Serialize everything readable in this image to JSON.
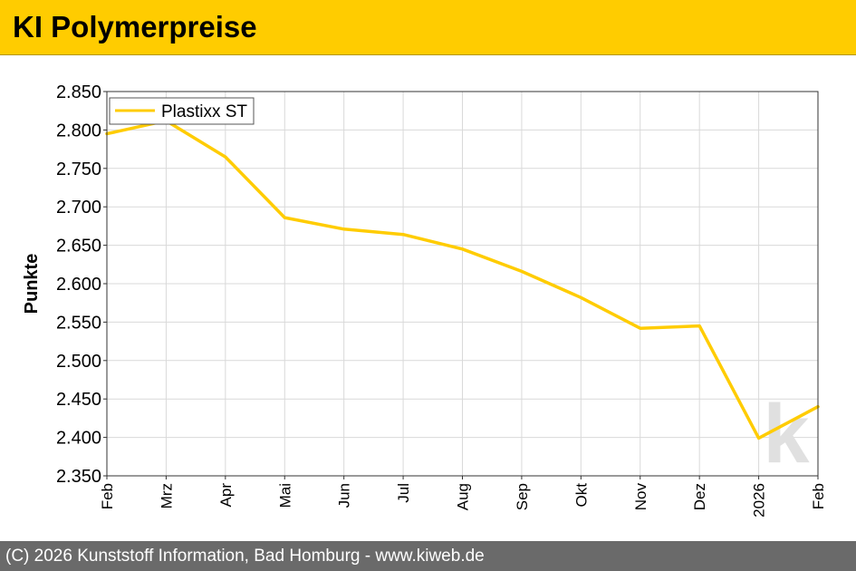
{
  "header": {
    "title": "KI Polymerpreise"
  },
  "footer": {
    "copyright": "(C) 2026 Kunststoff Information, Bad Homburg - www.kiweb.de"
  },
  "watermark": {
    "letter": "k"
  },
  "colors": {
    "accent": "#ffcc00",
    "line": "#ffcc00",
    "footer": "#6a6a6a",
    "grid": "#d9d9d9"
  },
  "chart_data": {
    "type": "line",
    "title": "KI Polymerpreise",
    "xlabel": "",
    "ylabel": "Punkte",
    "categories": [
      "Feb",
      "Mrz",
      "Apr",
      "Mai",
      "Jun",
      "Jul",
      "Aug",
      "Sep",
      "Okt",
      "Nov",
      "Dez",
      "2026",
      "Feb"
    ],
    "series": [
      {
        "name": "Plastixx ST",
        "values": [
          2795,
          2812,
          2765,
          2686,
          2671,
          2664,
          2645,
          2616,
          2582,
          2542,
          2545,
          2399,
          2440
        ]
      }
    ],
    "ylim": [
      2350,
      2850
    ],
    "yticks": [
      2350,
      2400,
      2450,
      2500,
      2550,
      2600,
      2650,
      2700,
      2750,
      2800,
      2850
    ],
    "ytick_labels": [
      "2.350",
      "2.400",
      "2.450",
      "2.500",
      "2.550",
      "2.600",
      "2.650",
      "2.700",
      "2.750",
      "2.800",
      "2.850"
    ],
    "grid": true,
    "legend_position": "top-left"
  }
}
